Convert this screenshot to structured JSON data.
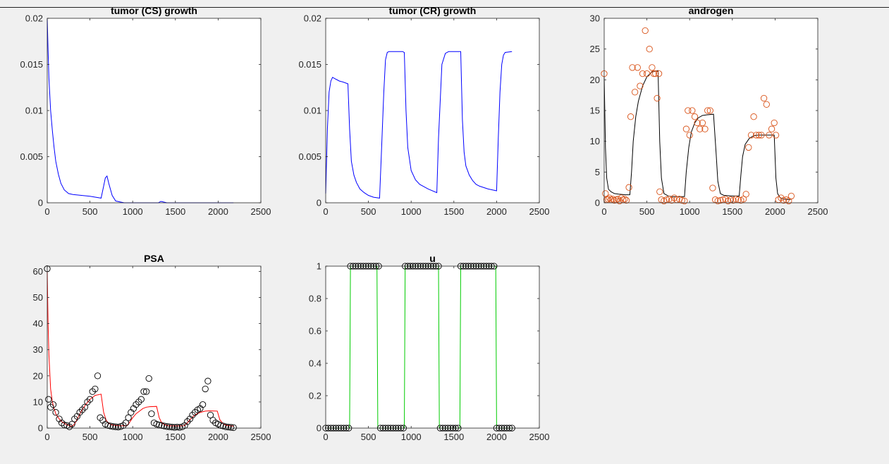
{
  "window": {
    "background": "#f0f0f0"
  },
  "chart_data": [
    {
      "id": "cs",
      "type": "line",
      "title": "tumor (CS) growth",
      "xlim": [
        0,
        2500
      ],
      "ylim": [
        0,
        0.02
      ],
      "xticks": [
        0,
        500,
        1000,
        1500,
        2000,
        2500
      ],
      "xtick_labels": [
        "0",
        "500",
        "1000",
        "1500",
        "2000",
        "2500"
      ],
      "yticks": [
        0,
        0.005,
        0.01,
        0.015,
        0.02
      ],
      "ytick_labels": [
        "0",
        "0.005",
        "0.01",
        "0.015",
        "0.02"
      ],
      "grid": false,
      "series": [
        {
          "type": "line",
          "color": "#0000ff",
          "x": [
            0,
            10,
            20,
            40,
            60,
            80,
            100,
            130,
            160,
            200,
            250,
            300,
            400,
            500,
            630,
            660,
            680,
            700,
            720,
            760,
            800,
            850,
            900,
            1000,
            1300,
            1330,
            1400,
            1600,
            2000,
            2180
          ],
          "y": [
            0.02,
            0.0165,
            0.0135,
            0.01,
            0.0078,
            0.006,
            0.0045,
            0.0031,
            0.0021,
            0.0014,
            0.001,
            0.0009,
            0.0008,
            0.0007,
            0.0005,
            0.0018,
            0.0027,
            0.0029,
            0.0021,
            0.0008,
            0.0002,
            0.0001,
            0.0,
            0.0,
            0.0,
            0.00015,
            0.0,
            0.0,
            0.0,
            0.0
          ]
        }
      ]
    },
    {
      "id": "cr",
      "type": "line",
      "title": "tumor (CR) growth",
      "xlim": [
        0,
        2500
      ],
      "ylim": [
        0,
        0.02
      ],
      "xticks": [
        0,
        500,
        1000,
        1500,
        2000,
        2500
      ],
      "xtick_labels": [
        "0",
        "500",
        "1000",
        "1500",
        "2000",
        "2500"
      ],
      "yticks": [
        0,
        0.005,
        0.01,
        0.015,
        0.02
      ],
      "ytick_labels": [
        "0",
        "0.005",
        "0.01",
        "0.015",
        "0.02"
      ],
      "grid": false,
      "series": [
        {
          "type": "line",
          "color": "#0000ff",
          "x": [
            0,
            20,
            40,
            60,
            80,
            120,
            160,
            200,
            260,
            280,
            300,
            330,
            360,
            400,
            450,
            500,
            560,
            630,
            650,
            680,
            700,
            720,
            740,
            800,
            860,
            900,
            920,
            940,
            960,
            1000,
            1050,
            1100,
            1200,
            1300,
            1320,
            1360,
            1400,
            1440,
            1480,
            1520,
            1560,
            1580,
            1600,
            1620,
            1640,
            1680,
            1720,
            1760,
            1800,
            1900,
            2000,
            2020,
            2040,
            2060,
            2080,
            2100,
            2180
          ],
          "y": [
            0.001,
            0.008,
            0.012,
            0.0132,
            0.0136,
            0.0134,
            0.0132,
            0.0131,
            0.0129,
            0.008,
            0.0045,
            0.003,
            0.0022,
            0.0015,
            0.0011,
            0.0008,
            0.0006,
            0.0005,
            0.005,
            0.012,
            0.0155,
            0.0163,
            0.0164,
            0.0164,
            0.0164,
            0.0164,
            0.0163,
            0.01,
            0.006,
            0.0035,
            0.0025,
            0.002,
            0.0015,
            0.0011,
            0.007,
            0.015,
            0.0162,
            0.0164,
            0.0164,
            0.0164,
            0.0164,
            0.0164,
            0.009,
            0.0055,
            0.004,
            0.003,
            0.0024,
            0.002,
            0.0018,
            0.0015,
            0.0013,
            0.007,
            0.012,
            0.015,
            0.016,
            0.0163,
            0.0164
          ]
        }
      ]
    },
    {
      "id": "androgen",
      "type": "scatter",
      "title": "androgen",
      "xlim": [
        0,
        2500
      ],
      "ylim": [
        0,
        30
      ],
      "xticks": [
        0,
        500,
        1000,
        1500,
        2000,
        2500
      ],
      "xtick_labels": [
        "0",
        "500",
        "1000",
        "1500",
        "2000",
        "2500"
      ],
      "yticks": [
        0,
        5,
        10,
        15,
        20,
        25,
        30
      ],
      "ytick_labels": [
        "0",
        "5",
        "10",
        "15",
        "20",
        "25",
        "30"
      ],
      "grid": false,
      "series": [
        {
          "type": "line",
          "color": "#000000",
          "x": [
            0,
            15,
            30,
            50,
            80,
            120,
            170,
            250,
            300,
            320,
            340,
            370,
            400,
            450,
            500,
            560,
            630,
            650,
            670,
            700,
            750,
            800,
            900,
            940,
            960,
            990,
            1020,
            1060,
            1100,
            1150,
            1200,
            1280,
            1310,
            1330,
            1360,
            1400,
            1500,
            1580,
            1600,
            1620,
            1650,
            1700,
            1750,
            1800,
            1850,
            1920,
            1990,
            2010,
            2030,
            2060,
            2100,
            2180
          ],
          "y": [
            20.5,
            9,
            4,
            2.2,
            1.8,
            1.5,
            1.4,
            1.3,
            1.3,
            5,
            10,
            14,
            16.5,
            19,
            20.5,
            21.3,
            21.5,
            10,
            4,
            1.5,
            1.1,
            1.0,
            1.0,
            1.0,
            5,
            9,
            11.5,
            13,
            13.8,
            14.2,
            14.3,
            14.4,
            8,
            3.5,
            1.5,
            1.2,
            1.1,
            1.1,
            4.5,
            7.5,
            9.5,
            10.5,
            10.9,
            11.0,
            11.0,
            11.0,
            11.0,
            4,
            1.5,
            0.8,
            0.6,
            0.5
          ]
        },
        {
          "type": "scatter",
          "marker": "o",
          "color": "#d95319",
          "x": [
            0,
            15,
            30,
            45,
            60,
            80,
            100,
            120,
            140,
            160,
            180,
            200,
            220,
            240,
            260,
            290,
            310,
            330,
            360,
            390,
            420,
            450,
            480,
            500,
            530,
            560,
            580,
            600,
            620,
            640,
            650,
            670,
            700,
            730,
            760,
            790,
            820,
            850,
            880,
            910,
            940,
            960,
            980,
            1000,
            1030,
            1060,
            1090,
            1120,
            1150,
            1180,
            1210,
            1240,
            1270,
            1300,
            1330,
            1360,
            1390,
            1420,
            1450,
            1480,
            1510,
            1540,
            1570,
            1600,
            1630,
            1660,
            1690,
            1720,
            1750,
            1780,
            1810,
            1840,
            1870,
            1900,
            1930,
            1960,
            1990,
            2010,
            2040,
            2070,
            2100,
            2130,
            2160,
            2190
          ],
          "y": [
            21,
            1.5,
            0.5,
            0.6,
            0.8,
            0.5,
            0.6,
            0.4,
            0.5,
            0.6,
            0.3,
            0.8,
            0.5,
            0.6,
            0.4,
            2.5,
            14,
            22,
            18,
            22,
            19,
            21,
            28,
            21,
            25,
            22,
            21,
            21,
            17,
            21,
            1.8,
            0.5,
            0.3,
            0.5,
            0.6,
            0.4,
            0.8,
            0.5,
            0.6,
            0.4,
            0.3,
            12,
            15,
            11,
            15,
            14,
            13,
            12,
            13,
            12,
            15,
            15,
            2.4,
            0.5,
            0.3,
            0.4,
            0.5,
            0.6,
            0.3,
            0.5,
            0.4,
            0.6,
            0.5,
            0.4,
            0.6,
            1.4,
            9,
            11,
            14,
            11,
            11,
            11,
            17,
            16,
            11,
            12,
            13,
            11,
            0.5,
            0.8,
            0.4,
            0.5,
            0.3,
            1.1
          ]
        }
      ]
    },
    {
      "id": "psa",
      "type": "scatter",
      "title": "PSA",
      "xlim": [
        0,
        2500
      ],
      "ylim": [
        0,
        62
      ],
      "xticks": [
        0,
        500,
        1000,
        1500,
        2000,
        2500
      ],
      "xtick_labels": [
        "0",
        "500",
        "1000",
        "1500",
        "2000",
        "2500"
      ],
      "yticks": [
        0,
        10,
        20,
        30,
        40,
        50,
        60
      ],
      "ytick_labels": [
        "0",
        "10",
        "20",
        "30",
        "40",
        "50",
        "60"
      ],
      "grid": false,
      "series": [
        {
          "type": "line",
          "color": "#ff0000",
          "x": [
            0,
            10,
            20,
            40,
            60,
            80,
            100,
            140,
            180,
            220,
            260,
            290,
            320,
            360,
            400,
            450,
            500,
            560,
            630,
            660,
            690,
            720,
            760,
            800,
            850,
            930,
            960,
            1000,
            1040,
            1080,
            1120,
            1160,
            1200,
            1280,
            1310,
            1340,
            1380,
            1420,
            1480,
            1550,
            1600,
            1640,
            1680,
            1720,
            1760,
            1800,
            1850,
            1900,
            1990,
            2020,
            2060,
            2100,
            2180
          ],
          "y": [
            60,
            40,
            28,
            15,
            10,
            7.5,
            5.5,
            3.5,
            2.2,
            1.4,
            0.9,
            0.7,
            1.5,
            4,
            6.5,
            9,
            11,
            12.5,
            13,
            6,
            3,
            1.8,
            1.2,
            1.0,
            0.9,
            0.9,
            2,
            4,
            5.5,
            6.5,
            7.5,
            8,
            8.2,
            8.3,
            4,
            2,
            1.2,
            0.9,
            0.8,
            0.8,
            0.9,
            2,
            3.5,
            4.8,
            5.6,
            6.1,
            6.5,
            6.6,
            6.5,
            3.2,
            1.6,
            1.0,
            0.7
          ]
        },
        {
          "type": "scatter",
          "marker": "o",
          "color": "#000000",
          "x": [
            0,
            15,
            40,
            70,
            100,
            140,
            170,
            200,
            230,
            260,
            290,
            320,
            350,
            380,
            410,
            440,
            470,
            500,
            530,
            560,
            590,
            620,
            650,
            680,
            710,
            740,
            770,
            800,
            830,
            860,
            890,
            920,
            950,
            980,
            1010,
            1040,
            1070,
            1100,
            1130,
            1160,
            1190,
            1220,
            1250,
            1280,
            1310,
            1340,
            1370,
            1400,
            1430,
            1460,
            1490,
            1520,
            1550,
            1580,
            1610,
            1640,
            1670,
            1700,
            1730,
            1760,
            1790,
            1820,
            1850,
            1880,
            1910,
            1940,
            1970,
            2000,
            2030,
            2060,
            2090,
            2120,
            2150,
            2180
          ],
          "y": [
            61,
            11,
            8,
            9,
            6,
            3.5,
            2,
            1.2,
            1,
            0.5,
            1.5,
            3.5,
            4.5,
            6,
            7,
            8,
            10,
            11,
            14,
            15,
            20,
            4,
            3,
            1.5,
            1,
            0.8,
            0.6,
            0.5,
            0.4,
            0.6,
            1,
            2,
            4,
            6,
            7.5,
            9,
            10,
            11,
            14,
            14,
            19,
            5.5,
            2,
            1.5,
            1.2,
            1,
            0.8,
            0.6,
            0.5,
            0.4,
            0.3,
            0.4,
            0.3,
            0.5,
            1,
            2.5,
            3.5,
            5,
            6,
            7,
            7.5,
            9,
            15,
            18,
            5,
            3,
            2,
            1.5,
            1,
            0.8,
            0.5,
            0.4,
            0.3,
            0.2
          ]
        }
      ]
    },
    {
      "id": "u",
      "type": "scatter",
      "title": "u",
      "xlim": [
        0,
        2500
      ],
      "ylim": [
        0,
        1
      ],
      "xticks": [
        0,
        500,
        1000,
        1500,
        2000,
        2500
      ],
      "xtick_labels": [
        "0",
        "500",
        "1000",
        "1500",
        "2000",
        "2500"
      ],
      "yticks": [
        0,
        0.2,
        0.4,
        0.6,
        0.8,
        1
      ],
      "ytick_labels": [
        "0",
        "0.2",
        "0.4",
        "0.6",
        "0.8",
        "1"
      ],
      "grid": false,
      "series": [
        {
          "type": "line",
          "color": "#00cc00",
          "x": [
            0,
            280,
            290,
            600,
            610,
            920,
            930,
            1320,
            1330,
            1570,
            1580,
            1990,
            2000,
            2180
          ],
          "y": [
            0,
            0,
            1,
            1,
            0,
            0,
            1,
            1,
            0,
            0,
            1,
            1,
            0,
            0
          ]
        },
        {
          "type": "scatter",
          "marker": "o",
          "color": "#000000",
          "x": [
            0,
            30,
            60,
            90,
            120,
            150,
            180,
            210,
            240,
            270,
            290,
            320,
            350,
            380,
            410,
            440,
            470,
            500,
            530,
            560,
            590,
            620,
            640,
            670,
            700,
            730,
            760,
            790,
            820,
            850,
            880,
            910,
            930,
            960,
            990,
            1020,
            1050,
            1080,
            1110,
            1140,
            1170,
            1200,
            1230,
            1260,
            1290,
            1320,
            1340,
            1370,
            1400,
            1430,
            1460,
            1490,
            1520,
            1550,
            1580,
            1610,
            1640,
            1670,
            1700,
            1730,
            1760,
            1790,
            1820,
            1850,
            1880,
            1910,
            1940,
            1970,
            2000,
            2030,
            2060,
            2090,
            2120,
            2150,
            2180
          ],
          "y": [
            0,
            0,
            0,
            0,
            0,
            0,
            0,
            0,
            0,
            0,
            1,
            1,
            1,
            1,
            1,
            1,
            1,
            1,
            1,
            1,
            1,
            1,
            0,
            0,
            0,
            0,
            0,
            0,
            0,
            0,
            0,
            0,
            1,
            1,
            1,
            1,
            1,
            1,
            1,
            1,
            1,
            1,
            1,
            1,
            1,
            1,
            0,
            0,
            0,
            0,
            0,
            0,
            0,
            0,
            1,
            1,
            1,
            1,
            1,
            1,
            1,
            1,
            1,
            1,
            1,
            1,
            1,
            1,
            0,
            0,
            0,
            0,
            0,
            0,
            0
          ]
        }
      ]
    }
  ]
}
